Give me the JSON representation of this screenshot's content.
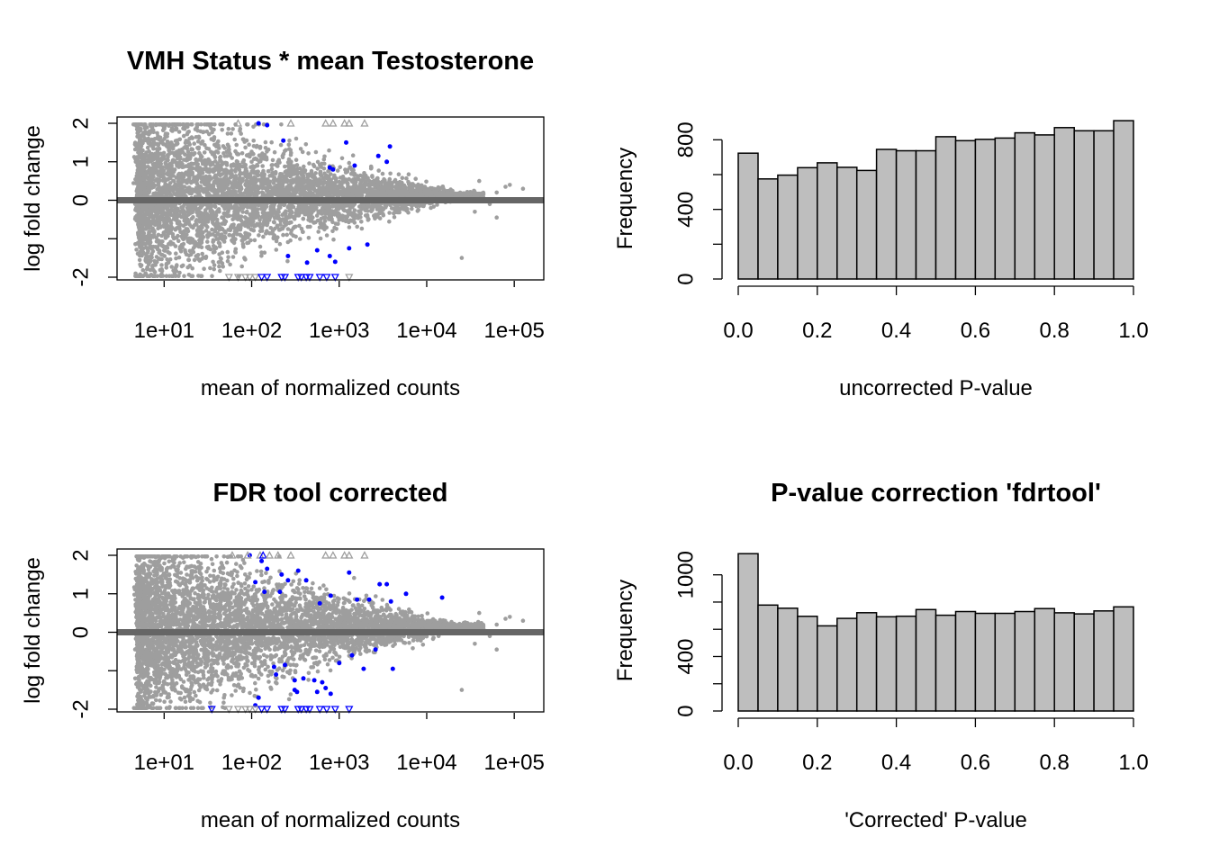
{
  "chart_data": [
    {
      "type": "scatter",
      "title": "VMH Status * mean Testosterone",
      "xlabel": "mean of normalized counts",
      "ylabel": "log fold change",
      "xscale": "log10",
      "xlim": [
        3.5,
        180000
      ],
      "ylim": [
        -2,
        2
      ],
      "xtick_labels": [
        "1e+01",
        "1e+02",
        "1e+03",
        "1e+04",
        "1e+05"
      ],
      "xtick_values": [
        10,
        100,
        1000,
        10000,
        100000
      ],
      "ytick_labels": [
        "-2",
        "",
        "0",
        "1",
        "2"
      ],
      "ytick_values": [
        -2,
        -1,
        0,
        1,
        2
      ],
      "colors": {
        "nonsignificant": "#9e9e9e",
        "significant": "#0000ff",
        "zero_line": "#666666"
      },
      "series": [
        {
          "name": "significant",
          "points": [
            [
              120,
              2.0
            ],
            [
              150,
              1.95
            ],
            [
              230,
              1.55
            ],
            [
              780,
              0.85
            ],
            [
              850,
              0.8
            ],
            [
              1200,
              1.5
            ],
            [
              1500,
              0.9
            ],
            [
              2800,
              1.15
            ],
            [
              3500,
              1.0
            ],
            [
              3800,
              1.4
            ],
            [
              2100,
              -1.15
            ],
            [
              1300,
              -1.25
            ],
            [
              900,
              -1.6
            ],
            [
              780,
              -1.45
            ],
            [
              260,
              -1.45
            ],
            [
              430,
              -1.62
            ],
            [
              560,
              -1.3
            ]
          ]
        }
      ],
      "clipped_points": [
        {
          "x": 70,
          "y": 2,
          "color": "#9e9e9e"
        },
        {
          "x": 280,
          "y": 2,
          "color": "#9e9e9e"
        },
        {
          "x": 700,
          "y": 2,
          "color": "#9e9e9e"
        },
        {
          "x": 850,
          "y": 2,
          "color": "#9e9e9e"
        },
        {
          "x": 1150,
          "y": 2,
          "color": "#9e9e9e"
        },
        {
          "x": 1300,
          "y": 2,
          "color": "#9e9e9e"
        },
        {
          "x": 1950,
          "y": 2,
          "color": "#9e9e9e"
        },
        {
          "x": 55,
          "y": -2,
          "color": "#9e9e9e"
        },
        {
          "x": 70,
          "y": -2,
          "color": "#9e9e9e"
        },
        {
          "x": 85,
          "y": -2,
          "color": "#9e9e9e"
        },
        {
          "x": 95,
          "y": -2,
          "color": "#9e9e9e"
        },
        {
          "x": 110,
          "y": -2,
          "color": "#9e9e9e"
        },
        {
          "x": 130,
          "y": -2,
          "color": "#0000ff"
        },
        {
          "x": 150,
          "y": -2,
          "color": "#0000ff"
        },
        {
          "x": 220,
          "y": -2,
          "color": "#0000ff"
        },
        {
          "x": 240,
          "y": -2,
          "color": "#0000ff"
        },
        {
          "x": 340,
          "y": -2,
          "color": "#0000ff"
        },
        {
          "x": 370,
          "y": -2,
          "color": "#0000ff"
        },
        {
          "x": 420,
          "y": -2,
          "color": "#0000ff"
        },
        {
          "x": 460,
          "y": -2,
          "color": "#0000ff"
        },
        {
          "x": 600,
          "y": -2,
          "color": "#0000ff"
        },
        {
          "x": 720,
          "y": -2,
          "color": "#0000ff"
        },
        {
          "x": 900,
          "y": -2,
          "color": "#0000ff"
        },
        {
          "x": 1300,
          "y": -2,
          "color": "#9e9e9e"
        }
      ]
    },
    {
      "type": "bar",
      "title": "",
      "xlabel": "uncorrected P-value",
      "ylabel": "Frequency",
      "xlim": [
        0,
        1
      ],
      "ylim": [
        0,
        900
      ],
      "bin_width": 0.05,
      "xtick_labels": [
        "0.0",
        "0.2",
        "0.4",
        "0.6",
        "0.8",
        "1.0"
      ],
      "xtick_values": [
        0,
        0.2,
        0.4,
        0.6,
        0.8,
        1.0
      ],
      "ytick_labels": [
        "0",
        "",
        "400",
        "",
        "800"
      ],
      "ytick_values": [
        0,
        200,
        400,
        600,
        800
      ],
      "bar_color": "#bebebe",
      "values": [
        723,
        575,
        597,
        640,
        668,
        642,
        624,
        745,
        737,
        737,
        818,
        795,
        803,
        810,
        840,
        828,
        870,
        852,
        852,
        910
      ]
    },
    {
      "type": "scatter",
      "title": "FDR tool corrected",
      "xlabel": "mean of normalized counts",
      "ylabel": "log fold change",
      "xscale": "log10",
      "xlim": [
        3.5,
        180000
      ],
      "ylim": [
        -2,
        2
      ],
      "xtick_labels": [
        "1e+01",
        "1e+02",
        "1e+03",
        "1e+04",
        "1e+05"
      ],
      "xtick_values": [
        10,
        100,
        1000,
        10000,
        100000
      ],
      "ytick_labels": [
        "-2",
        "",
        "0",
        "1",
        "2"
      ],
      "ytick_values": [
        -2,
        -1,
        0,
        1,
        2
      ],
      "colors": {
        "nonsignificant": "#9e9e9e",
        "significant": "#0000ff",
        "zero_line": "#666666"
      },
      "series": [
        {
          "name": "significant",
          "points": [
            [
              95,
              2.0
            ],
            [
              130,
              1.85
            ],
            [
              150,
              1.65
            ],
            [
              110,
              1.3
            ],
            [
              140,
              1.05
            ],
            [
              210,
              1.05
            ],
            [
              260,
              1.35
            ],
            [
              220,
              1.5
            ],
            [
              340,
              1.6
            ],
            [
              420,
              1.35
            ],
            [
              600,
              0.75
            ],
            [
              800,
              0.95
            ],
            [
              1300,
              1.55
            ],
            [
              1600,
              0.85
            ],
            [
              2200,
              0.85
            ],
            [
              2900,
              1.25
            ],
            [
              3500,
              1.25
            ],
            [
              3900,
              0.8
            ],
            [
              5800,
              1.0
            ],
            [
              15000,
              0.9
            ],
            [
              180,
              -0.9
            ],
            [
              190,
              -1.1
            ],
            [
              240,
              -0.85
            ],
            [
              310,
              -1.25
            ],
            [
              310,
              -1.5
            ],
            [
              330,
              -1.55
            ],
            [
              390,
              -1.2
            ],
            [
              520,
              -1.25
            ],
            [
              560,
              -1.55
            ],
            [
              640,
              -1.3
            ],
            [
              700,
              -1.45
            ],
            [
              1000,
              -0.8
            ],
            [
              1400,
              -0.6
            ],
            [
              1900,
              -0.95
            ],
            [
              2600,
              -0.45
            ],
            [
              4100,
              -0.95
            ],
            [
              800,
              -1.6
            ],
            [
              120,
              -1.7
            ],
            [
              110,
              -1.9
            ]
          ]
        }
      ],
      "clipped_points": [
        {
          "x": 60,
          "y": 2,
          "color": "#9e9e9e"
        },
        {
          "x": 90,
          "y": 2,
          "color": "#9e9e9e"
        },
        {
          "x": 125,
          "y": 2,
          "color": "#9e9e9e"
        },
        {
          "x": 135,
          "y": 2,
          "color": "#0000ff"
        },
        {
          "x": 160,
          "y": 2,
          "color": "#9e9e9e"
        },
        {
          "x": 200,
          "y": 2,
          "color": "#9e9e9e"
        },
        {
          "x": 280,
          "y": 2,
          "color": "#9e9e9e"
        },
        {
          "x": 700,
          "y": 2,
          "color": "#9e9e9e"
        },
        {
          "x": 850,
          "y": 2,
          "color": "#9e9e9e"
        },
        {
          "x": 1150,
          "y": 2,
          "color": "#9e9e9e"
        },
        {
          "x": 1300,
          "y": 2,
          "color": "#9e9e9e"
        },
        {
          "x": 1950,
          "y": 2,
          "color": "#9e9e9e"
        },
        {
          "x": 35,
          "y": -2,
          "color": "#0000ff"
        },
        {
          "x": 55,
          "y": -2,
          "color": "#9e9e9e"
        },
        {
          "x": 70,
          "y": -2,
          "color": "#9e9e9e"
        },
        {
          "x": 85,
          "y": -2,
          "color": "#9e9e9e"
        },
        {
          "x": 95,
          "y": -2,
          "color": "#9e9e9e"
        },
        {
          "x": 110,
          "y": -2,
          "color": "#9e9e9e"
        },
        {
          "x": 130,
          "y": -2,
          "color": "#0000ff"
        },
        {
          "x": 150,
          "y": -2,
          "color": "#0000ff"
        },
        {
          "x": 220,
          "y": -2,
          "color": "#0000ff"
        },
        {
          "x": 240,
          "y": -2,
          "color": "#0000ff"
        },
        {
          "x": 340,
          "y": -2,
          "color": "#0000ff"
        },
        {
          "x": 370,
          "y": -2,
          "color": "#0000ff"
        },
        {
          "x": 420,
          "y": -2,
          "color": "#0000ff"
        },
        {
          "x": 460,
          "y": -2,
          "color": "#0000ff"
        },
        {
          "x": 600,
          "y": -2,
          "color": "#0000ff"
        },
        {
          "x": 720,
          "y": -2,
          "color": "#0000ff"
        },
        {
          "x": 900,
          "y": -2,
          "color": "#0000ff"
        },
        {
          "x": 1300,
          "y": -2,
          "color": "#0000ff"
        }
      ]
    },
    {
      "type": "bar",
      "title": "P-value correction 'fdrtool'",
      "xlabel": "'Corrected' P-value",
      "ylabel": "Frequency",
      "xlim": [
        0,
        1
      ],
      "ylim": [
        0,
        1150
      ],
      "bin_width": 0.05,
      "xtick_labels": [
        "0.0",
        "0.2",
        "0.4",
        "0.6",
        "0.8",
        "1.0"
      ],
      "xtick_values": [
        0,
        0.2,
        0.4,
        0.6,
        0.8,
        1.0
      ],
      "ytick_labels": [
        "0",
        "",
        "400",
        "",
        "",
        "1000"
      ],
      "ytick_values": [
        0,
        200,
        400,
        600,
        800,
        1000
      ],
      "bar_color": "#bebebe",
      "values": [
        1155,
        778,
        755,
        695,
        625,
        680,
        722,
        692,
        696,
        745,
        703,
        730,
        717,
        717,
        730,
        752,
        721,
        713,
        735,
        765
      ]
    }
  ]
}
